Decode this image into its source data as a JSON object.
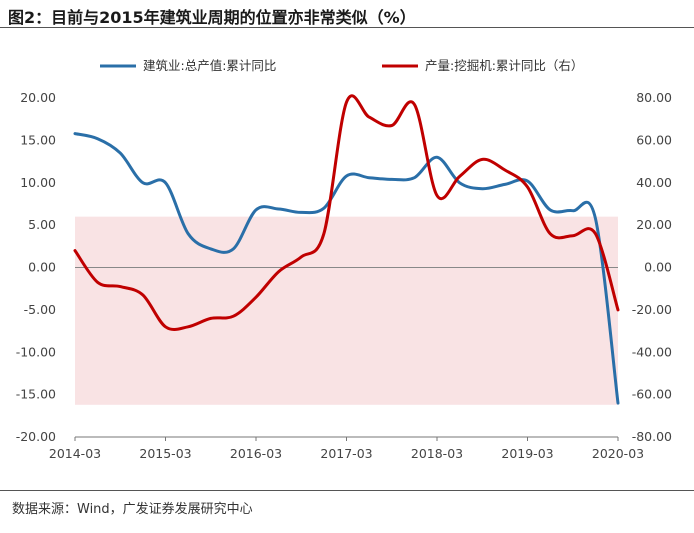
{
  "header": {
    "title": "图2：目前与2015年建筑业周期的位置亦非常类似（%）"
  },
  "footer": {
    "source": "数据来源：Wind，广发证券发展研究中心"
  },
  "colors": {
    "series1": "#2a6fa8",
    "series2": "#c00000",
    "band": "#f9e3e4"
  },
  "chart_data": {
    "type": "line",
    "x_ticks": [
      "2014-03",
      "2015-03",
      "2016-03",
      "2017-03",
      "2018-03",
      "2019-03",
      "2020-03"
    ],
    "y_left": {
      "range": [
        -20,
        20
      ],
      "ticks": [
        "20.00",
        "15.00",
        "10.00",
        "5.00",
        "0.00",
        "-5.00",
        "-10.00",
        "-15.00",
        "-20.00"
      ]
    },
    "y_right": {
      "range": [
        -80,
        80
      ],
      "ticks": [
        "80.00",
        "60.00",
        "40.00",
        "20.00",
        "0.00",
        "-20.00",
        "-40.00",
        "-60.00",
        "-80.00"
      ]
    },
    "shaded_band": {
      "axis": "left",
      "from": -16.2,
      "to": 6.0
    },
    "series": [
      {
        "name": "建筑业:总产值:累计同比",
        "axis": "left",
        "color": "#2a6fa8",
        "x": [
          "2014-03",
          "2014-06",
          "2014-09",
          "2014-12",
          "2015-03",
          "2015-06",
          "2015-09",
          "2015-12",
          "2016-03",
          "2016-06",
          "2016-09",
          "2016-12",
          "2017-03",
          "2017-06",
          "2017-09",
          "2017-12",
          "2018-03",
          "2018-06",
          "2018-09",
          "2018-12",
          "2019-03",
          "2019-06",
          "2019-09",
          "2019-12",
          "2020-03"
        ],
        "values": [
          15.8,
          15.2,
          13.5,
          10.0,
          10.0,
          4.0,
          2.2,
          2.2,
          6.8,
          6.9,
          6.5,
          7.0,
          10.8,
          10.6,
          10.4,
          10.6,
          13.0,
          10.0,
          9.3,
          9.8,
          10.2,
          6.8,
          6.7,
          5.8,
          -16.0
        ]
      },
      {
        "name": "产量:挖掘机:累计同比（右）",
        "axis": "right",
        "color": "#c00000",
        "x": [
          "2014-03",
          "2014-06",
          "2014-09",
          "2014-12",
          "2015-03",
          "2015-06",
          "2015-09",
          "2015-12",
          "2016-03",
          "2016-06",
          "2016-09",
          "2016-12",
          "2017-03",
          "2017-06",
          "2017-09",
          "2017-12",
          "2018-03",
          "2018-06",
          "2018-09",
          "2018-12",
          "2019-03",
          "2019-06",
          "2019-09",
          "2019-12",
          "2020-03"
        ],
        "values": [
          8.0,
          -7.0,
          -9.0,
          -13.0,
          -28.0,
          -28.0,
          -24.0,
          -23.0,
          -14.0,
          -2.0,
          5.0,
          16.0,
          78.0,
          71.0,
          67.0,
          77.0,
          34.0,
          43.0,
          51.0,
          46.0,
          38.0,
          16.0,
          15.0,
          16.0,
          -20.0
        ]
      }
    ]
  }
}
